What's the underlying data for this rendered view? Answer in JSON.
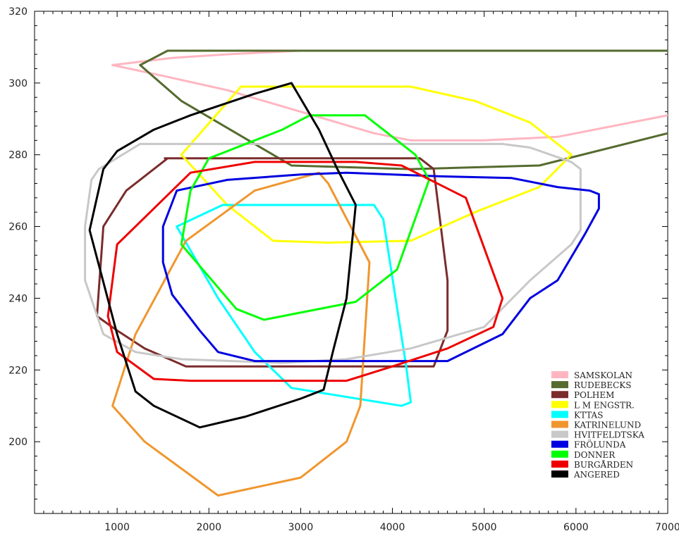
{
  "chart_data": {
    "type": "line",
    "title": "",
    "xlabel": "",
    "ylabel": "",
    "xlim": [
      100,
      7000
    ],
    "ylim": [
      180,
      320
    ],
    "x_ticks": [
      1000,
      2000,
      3000,
      4000,
      5000,
      6000,
      7000
    ],
    "y_ticks": [
      200,
      220,
      240,
      260,
      280,
      300,
      320
    ],
    "grid": false,
    "legend_position": "bottom-right",
    "series": [
      {
        "name": "SAMSKOLAN",
        "color": "#ffb6c1",
        "closed": false,
        "points": [
          [
            7000,
            309
          ],
          [
            4200,
            309
          ],
          [
            3000,
            309
          ],
          [
            2200,
            308
          ],
          [
            1600,
            307
          ],
          [
            950,
            305
          ],
          [
            1500,
            302
          ],
          [
            2200,
            298
          ],
          [
            3000,
            292
          ],
          [
            3800,
            286
          ],
          [
            4200,
            284
          ],
          [
            5000,
            284
          ],
          [
            5800,
            285
          ],
          [
            6200,
            287
          ],
          [
            7000,
            291
          ]
        ]
      },
      {
        "name": "RUDEBECKS",
        "color": "#556b2f",
        "closed": false,
        "points": [
          [
            7000,
            309
          ],
          [
            3000,
            309
          ],
          [
            1550,
            309
          ],
          [
            1250,
            305
          ],
          [
            1700,
            295
          ],
          [
            2300,
            286
          ],
          [
            2900,
            277
          ],
          [
            4200,
            276
          ],
          [
            5600,
            277
          ],
          [
            7000,
            286
          ]
        ]
      },
      {
        "name": "POLHEM",
        "color": "#7b2c2c",
        "closed": true,
        "points": [
          [
            1520,
            279
          ],
          [
            2900,
            279
          ],
          [
            4300,
            279
          ],
          [
            4450,
            276
          ],
          [
            4600,
            245
          ],
          [
            4600,
            231
          ],
          [
            4450,
            221
          ],
          [
            3000,
            221
          ],
          [
            1750,
            221
          ],
          [
            1300,
            226
          ],
          [
            1000,
            231
          ],
          [
            780,
            235
          ],
          [
            850,
            260
          ],
          [
            1100,
            270
          ],
          [
            1550,
            279
          ]
        ]
      },
      {
        "name": "L M ENGSTR.",
        "color": "#ffff00",
        "closed": true,
        "points": [
          [
            2350,
            299
          ],
          [
            3200,
            299
          ],
          [
            4200,
            299
          ],
          [
            4900,
            295
          ],
          [
            5500,
            289
          ],
          [
            5950,
            280
          ],
          [
            5600,
            271
          ],
          [
            4900,
            264
          ],
          [
            4200,
            256
          ],
          [
            3300,
            255.5
          ],
          [
            2700,
            256
          ],
          [
            2200,
            266
          ],
          [
            1700,
            280
          ],
          [
            2350,
            299
          ]
        ]
      },
      {
        "name": "KTTAS",
        "color": "#00ffff",
        "closed": true,
        "points": [
          [
            2150,
            266
          ],
          [
            3000,
            266
          ],
          [
            3800,
            266
          ],
          [
            3900,
            262
          ],
          [
            4150,
            221
          ],
          [
            4200,
            211
          ],
          [
            4100,
            210
          ],
          [
            2900,
            215
          ],
          [
            2500,
            225
          ],
          [
            2100,
            240
          ],
          [
            1650,
            260
          ],
          [
            2150,
            266
          ]
        ]
      },
      {
        "name": "KATRINELUND",
        "color": "#f0962e",
        "closed": true,
        "points": [
          [
            3200,
            275
          ],
          [
            3300,
            272
          ],
          [
            3750,
            250
          ],
          [
            3700,
            230
          ],
          [
            3650,
            210
          ],
          [
            3500,
            200
          ],
          [
            3000,
            190
          ],
          [
            2100,
            185
          ],
          [
            1300,
            200
          ],
          [
            950,
            210
          ],
          [
            1200,
            230
          ],
          [
            1750,
            256
          ],
          [
            2500,
            270
          ],
          [
            3200,
            275
          ]
        ]
      },
      {
        "name": "HVITFELDTSKA",
        "color": "#c8c8c8",
        "closed": true,
        "points": [
          [
            1250,
            283
          ],
          [
            2800,
            283
          ],
          [
            4500,
            283
          ],
          [
            5200,
            283
          ],
          [
            5500,
            282
          ],
          [
            5950,
            278
          ],
          [
            6050,
            276
          ],
          [
            6050,
            259
          ],
          [
            5950,
            255
          ],
          [
            5500,
            245
          ],
          [
            5000,
            232
          ],
          [
            4200,
            226
          ],
          [
            3500,
            223
          ],
          [
            2800,
            222
          ],
          [
            1700,
            223
          ],
          [
            1200,
            225
          ],
          [
            850,
            230
          ],
          [
            650,
            245
          ],
          [
            650,
            260
          ],
          [
            720,
            273
          ],
          [
            800,
            276
          ],
          [
            1250,
            283
          ]
        ]
      },
      {
        "name": "FRÖLUNDA",
        "color": "#0000e0",
        "closed": true,
        "points": [
          [
            2200,
            273
          ],
          [
            3000,
            274.5
          ],
          [
            3500,
            275
          ],
          [
            4500,
            274
          ],
          [
            5300,
            273.5
          ],
          [
            5800,
            271
          ],
          [
            6150,
            270
          ],
          [
            6250,
            269
          ],
          [
            6250,
            265
          ],
          [
            6100,
            258
          ],
          [
            5800,
            245
          ],
          [
            5500,
            240
          ],
          [
            5200,
            230
          ],
          [
            4600,
            222.5
          ],
          [
            3700,
            222.5
          ],
          [
            2500,
            222.5
          ],
          [
            2100,
            225
          ],
          [
            1900,
            231
          ],
          [
            1600,
            241
          ],
          [
            1500,
            250
          ],
          [
            1500,
            260
          ],
          [
            1650,
            270
          ],
          [
            2200,
            273
          ]
        ]
      },
      {
        "name": "DONNER",
        "color": "#00ff00",
        "closed": true,
        "points": [
          [
            2000,
            279
          ],
          [
            2800,
            287
          ],
          [
            3100,
            291
          ],
          [
            3700,
            291
          ],
          [
            4250,
            280
          ],
          [
            4400,
            273
          ],
          [
            4050,
            248
          ],
          [
            3600,
            239
          ],
          [
            2600,
            234
          ],
          [
            2300,
            237
          ],
          [
            1700,
            255
          ],
          [
            1800,
            270
          ],
          [
            2000,
            279
          ]
        ]
      },
      {
        "name": "BURGÅRDEN",
        "color": "#ee0000",
        "closed": true,
        "points": [
          [
            2500,
            278
          ],
          [
            3600,
            278
          ],
          [
            4100,
            277
          ],
          [
            4800,
            268
          ],
          [
            5200,
            240
          ],
          [
            5100,
            232
          ],
          [
            4600,
            226
          ],
          [
            4000,
            221
          ],
          [
            3500,
            217
          ],
          [
            2500,
            217
          ],
          [
            1800,
            217
          ],
          [
            1400,
            217.5
          ],
          [
            1000,
            225
          ],
          [
            900,
            235
          ],
          [
            1000,
            255
          ],
          [
            1200,
            260
          ],
          [
            1400,
            265
          ],
          [
            1800,
            275
          ],
          [
            2500,
            278
          ]
        ]
      },
      {
        "name": "ANGERED",
        "color": "#000000",
        "closed": true,
        "points": [
          [
            2900,
            300
          ],
          [
            2500,
            297
          ],
          [
            1800,
            291
          ],
          [
            1400,
            287
          ],
          [
            1000,
            281
          ],
          [
            850,
            276
          ],
          [
            700,
            259
          ],
          [
            1000,
            230
          ],
          [
            1200,
            214
          ],
          [
            1400,
            210
          ],
          [
            1900,
            204
          ],
          [
            2400,
            207
          ],
          [
            3000,
            212
          ],
          [
            3250,
            214.5
          ],
          [
            3350,
            225
          ],
          [
            3500,
            240
          ],
          [
            3600,
            266
          ],
          [
            3400,
            276
          ],
          [
            3200,
            287
          ],
          [
            2900,
            300
          ]
        ]
      }
    ]
  }
}
